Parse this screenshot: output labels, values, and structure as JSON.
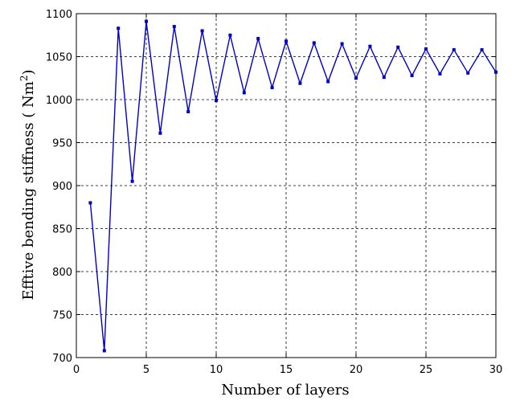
{
  "chart_data": {
    "type": "line",
    "xlabel": "Number of layers",
    "ylabel_prefix": "Efftive bending stiffness ( Nm",
    "ylabel_sup": "2",
    "ylabel_suffix": ")",
    "xlim": [
      0,
      30
    ],
    "ylim": [
      700,
      1100
    ],
    "xticks": [
      0,
      5,
      10,
      15,
      20,
      25,
      30
    ],
    "yticks": [
      700,
      750,
      800,
      850,
      900,
      950,
      1000,
      1050,
      1100
    ],
    "grid": true,
    "series_color": "#0000c8",
    "series": [
      {
        "x": [
          1,
          2,
          3,
          4,
          5,
          6,
          7,
          8,
          9,
          10,
          11,
          12,
          13,
          14,
          15,
          16,
          17,
          18,
          19,
          20,
          21,
          22,
          23,
          24,
          25,
          26,
          27,
          28,
          29,
          30
        ],
        "values": [
          880,
          708,
          1083,
          905,
          1091,
          961,
          1085,
          986,
          1080,
          999,
          1075,
          1008,
          1071,
          1014,
          1068,
          1019,
          1066,
          1021,
          1065,
          1025,
          1062,
          1026,
          1061,
          1028,
          1059,
          1030,
          1058,
          1031,
          1058,
          1032
        ]
      }
    ]
  }
}
